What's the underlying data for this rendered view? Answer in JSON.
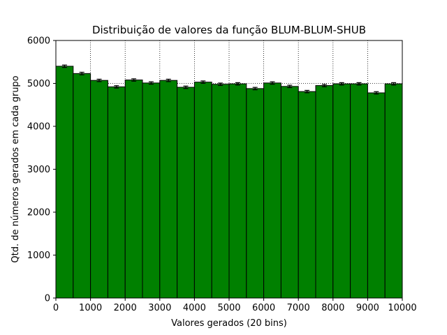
{
  "chart_data": {
    "type": "bar",
    "title": "Distribuição de valores da função BLUM-BLUM-SHUB",
    "xlabel": "Valores gerados (20 bins)",
    "ylabel": "Qtd. de números gerados em cada grupo",
    "xlim": [
      0,
      10000
    ],
    "ylim": [
      0,
      6000
    ],
    "xticks": [
      "0",
      "1000",
      "2000",
      "3000",
      "4000",
      "5000",
      "6000",
      "7000",
      "8000",
      "9000",
      "10000"
    ],
    "yticks": [
      "0",
      "1000",
      "2000",
      "3000",
      "4000",
      "5000",
      "6000"
    ],
    "bin_width": 500,
    "bins": [
      {
        "start": 0,
        "value": 5400,
        "err": 28
      },
      {
        "start": 500,
        "value": 5230,
        "err": 30
      },
      {
        "start": 1000,
        "value": 5070,
        "err": 28
      },
      {
        "start": 1500,
        "value": 4920,
        "err": 28
      },
      {
        "start": 2000,
        "value": 5080,
        "err": 28
      },
      {
        "start": 2500,
        "value": 5010,
        "err": 28
      },
      {
        "start": 3000,
        "value": 5070,
        "err": 28
      },
      {
        "start": 3500,
        "value": 4910,
        "err": 28
      },
      {
        "start": 4000,
        "value": 5030,
        "err": 28
      },
      {
        "start": 4500,
        "value": 4980,
        "err": 28
      },
      {
        "start": 5000,
        "value": 4990,
        "err": 28
      },
      {
        "start": 5500,
        "value": 4880,
        "err": 28
      },
      {
        "start": 6000,
        "value": 5010,
        "err": 28
      },
      {
        "start": 6500,
        "value": 4930,
        "err": 28
      },
      {
        "start": 7000,
        "value": 4810,
        "err": 28
      },
      {
        "start": 7500,
        "value": 4950,
        "err": 28
      },
      {
        "start": 8000,
        "value": 4990,
        "err": 28
      },
      {
        "start": 8500,
        "value": 4990,
        "err": 28
      },
      {
        "start": 9000,
        "value": 4780,
        "err": 28
      },
      {
        "start": 9500,
        "value": 4990,
        "err": 28
      }
    ],
    "grid": true,
    "grid_style": "dotted",
    "legend": "none",
    "colors": {
      "bar_fill": "#008000",
      "bar_edge": "#000000",
      "errorbar": "#000000",
      "grid": "#000000"
    }
  }
}
